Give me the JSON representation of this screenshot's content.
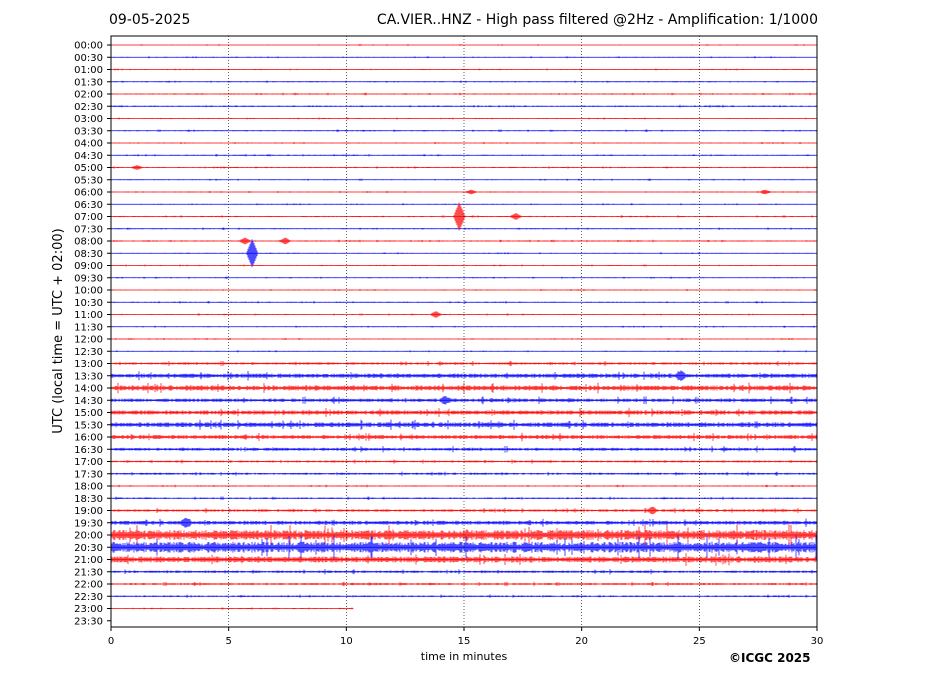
{
  "header": {
    "date": "09-05-2025",
    "title": "CA.VIER..HNZ - High pass filtered @2Hz - Amplification: 1/1000"
  },
  "footer": {
    "copyright": "©ICGC 2025"
  },
  "colors": {
    "trace_a": "#ff0000",
    "trace_b": "#0000ff",
    "grid": "#000000"
  },
  "chart_data": {
    "type": "line",
    "title": "CA.VIER..HNZ - High pass filtered @2Hz - Amplification: 1/1000",
    "xlabel": "time in minutes",
    "ylabel": "UTC (local time = UTC + 02:00)",
    "xlim": [
      0,
      30
    ],
    "x_ticks": [
      0,
      5,
      10,
      15,
      20,
      25,
      30
    ],
    "x_tick_labels": [
      "0",
      "5",
      "10",
      "15",
      "20",
      "25",
      "30"
    ],
    "vertical_gridlines_at": [
      5,
      10,
      15,
      20,
      25
    ],
    "grid": true,
    "row_labels": [
      "00:00",
      "00:30",
      "01:00",
      "01:30",
      "02:00",
      "02:30",
      "03:00",
      "03:30",
      "04:00",
      "04:30",
      "05:00",
      "05:30",
      "06:00",
      "06:30",
      "07:00",
      "07:30",
      "08:00",
      "08:30",
      "09:00",
      "09:30",
      "10:00",
      "10:30",
      "11:00",
      "11:30",
      "12:00",
      "12:30",
      "13:00",
      "13:30",
      "14:00",
      "14:30",
      "15:00",
      "15:30",
      "16:00",
      "16:30",
      "17:00",
      "17:30",
      "18:00",
      "18:30",
      "19:00",
      "19:30",
      "20:00",
      "20:30",
      "21:00",
      "21:30",
      "22:00",
      "22:30",
      "23:00",
      "23:30"
    ],
    "row_colors": [
      "red",
      "blue",
      "red",
      "blue",
      "red",
      "blue",
      "red",
      "blue",
      "red",
      "blue",
      "red",
      "blue",
      "red",
      "blue",
      "red",
      "blue",
      "red",
      "blue",
      "red",
      "blue",
      "red",
      "blue",
      "red",
      "blue",
      "red",
      "blue",
      "red",
      "blue",
      "red",
      "blue",
      "red",
      "blue",
      "red",
      "blue",
      "red",
      "blue",
      "red",
      "blue",
      "red",
      "blue",
      "red",
      "blue",
      "red",
      "blue",
      "red",
      "blue",
      "red",
      "blue"
    ],
    "trace_end_minutes": [
      30,
      30,
      30,
      30,
      30,
      30,
      30,
      30,
      30,
      30,
      30,
      30,
      30,
      30,
      30,
      30,
      30,
      30,
      30,
      30,
      30,
      30,
      30,
      30,
      30,
      30,
      30,
      30,
      30,
      30,
      30,
      30,
      30,
      30,
      30,
      30,
      30,
      30,
      30,
      30,
      30,
      30,
      30,
      30,
      30,
      30,
      10.3,
      0
    ],
    "noise_amplitude": [
      0.4,
      0.5,
      0.5,
      0.6,
      0.6,
      0.7,
      0.5,
      0.6,
      0.5,
      0.6,
      0.6,
      0.5,
      0.5,
      0.5,
      0.6,
      0.6,
      0.6,
      0.5,
      0.5,
      0.5,
      0.5,
      0.6,
      0.5,
      0.5,
      0.5,
      0.5,
      1.2,
      2.2,
      2.5,
      1.8,
      2.2,
      2.4,
      2.0,
      1.5,
      1.0,
      1.0,
      0.6,
      0.8,
      1.2,
      2.0,
      5.0,
      5.5,
      3.0,
      1.2,
      1.0,
      0.8,
      0.5,
      0
    ],
    "events": [
      {
        "row": "07:00",
        "x": 14.8,
        "amplitude": 14
      },
      {
        "row": "07:00",
        "x": 17.2,
        "amplitude": 3
      },
      {
        "row": "08:30",
        "x": 6.0,
        "amplitude": 14
      },
      {
        "row": "08:00",
        "x": 5.7,
        "amplitude": 3
      },
      {
        "row": "08:00",
        "x": 7.4,
        "amplitude": 3
      },
      {
        "row": "05:00",
        "x": 1.1,
        "amplitude": 2
      },
      {
        "row": "06:00",
        "x": 15.3,
        "amplitude": 2
      },
      {
        "row": "06:00",
        "x": 27.8,
        "amplitude": 2
      },
      {
        "row": "11:00",
        "x": 13.8,
        "amplitude": 3
      },
      {
        "row": "14:30",
        "x": 14.2,
        "amplitude": 3
      },
      {
        "row": "19:30",
        "x": 3.2,
        "amplitude": 4
      },
      {
        "row": "19:00",
        "x": 23.0,
        "amplitude": 3
      },
      {
        "row": "13:30",
        "x": 24.2,
        "amplitude": 4
      }
    ]
  }
}
